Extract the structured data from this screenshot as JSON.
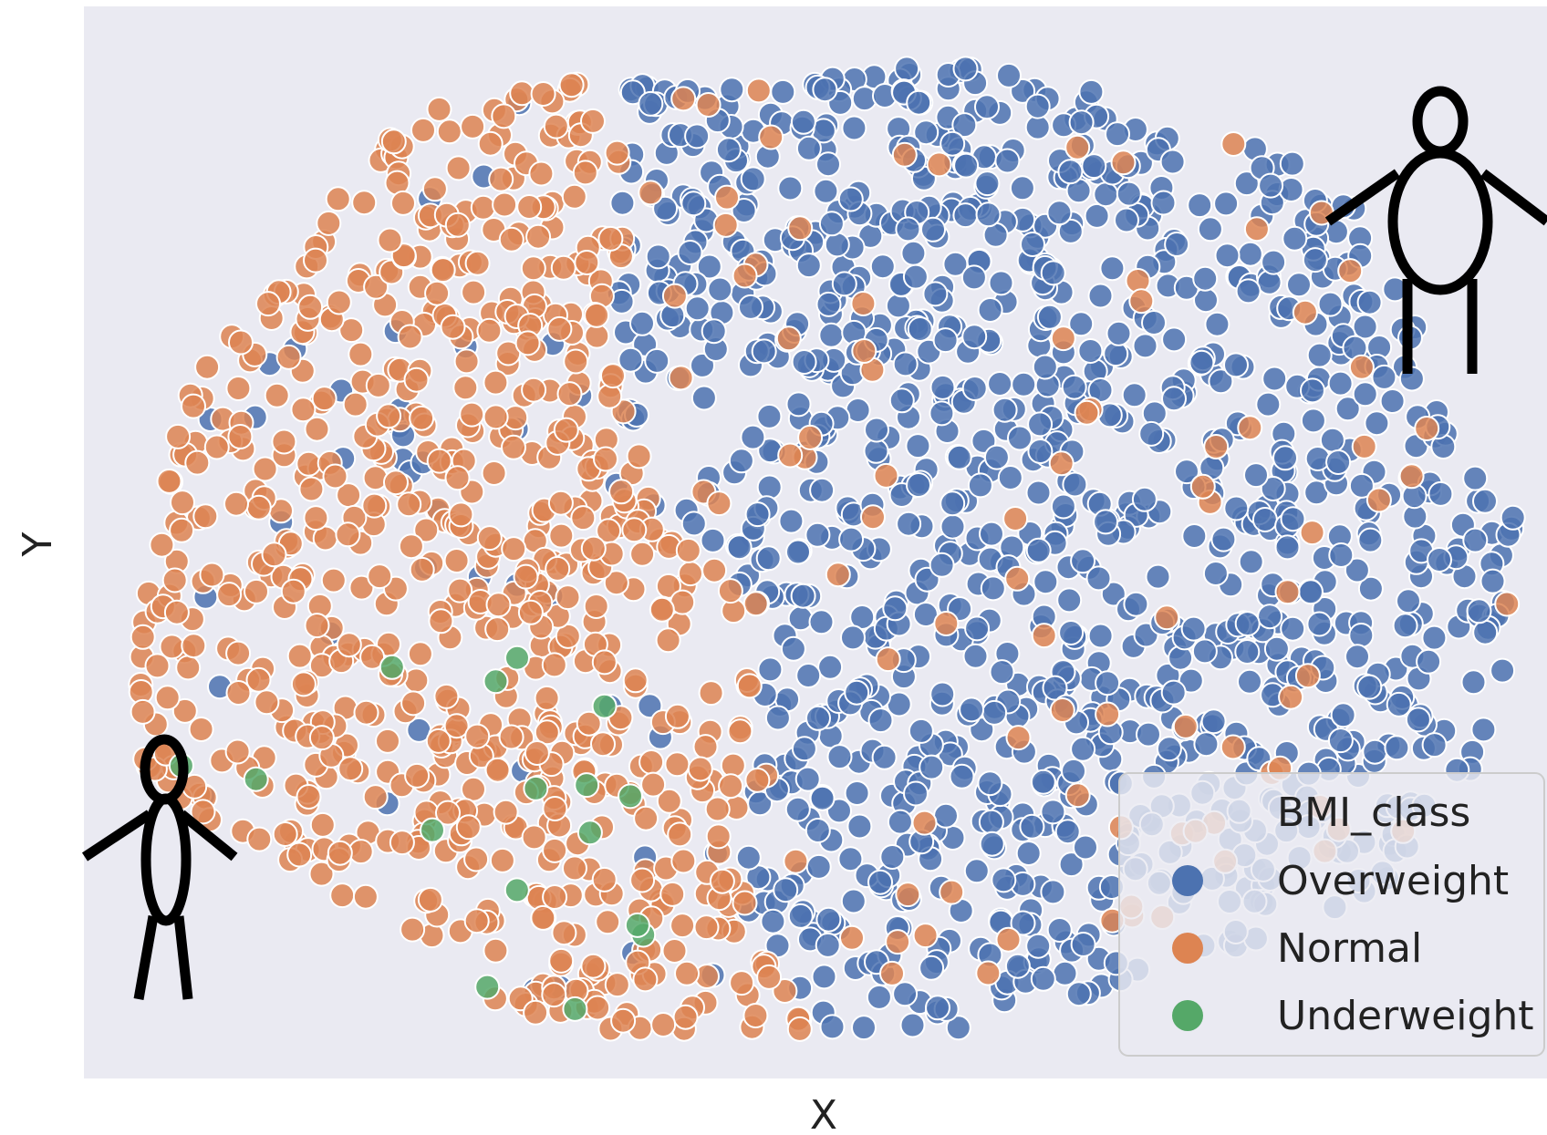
{
  "chart_data": {
    "type": "scatter",
    "title": "",
    "xlabel": "X",
    "ylabel": "Y",
    "grid": false,
    "axis_ticks_shown": false,
    "background_color": "#EAEAF2",
    "legend": {
      "title": "BMI_class",
      "placement": "bottom-right",
      "entries": [
        "Overweight",
        "Normal",
        "Underweight"
      ]
    },
    "series": [
      {
        "name": "Overweight",
        "color": "#4C72B0",
        "cluster_description": "dominant in right and upper-center region",
        "approx_count": 1100
      },
      {
        "name": "Normal",
        "color": "#DD8452",
        "cluster_description": "dominant in left and lower-center region",
        "approx_count": 1000
      },
      {
        "name": "Underweight",
        "color": "#55A868",
        "cluster_description": "few points along lower-left edge",
        "approx_count": 12
      }
    ],
    "icons": [
      {
        "name": "thin-person-icon",
        "meaning": "Underweight / thin figure",
        "placement": "lower-left"
      },
      {
        "name": "large-person-icon",
        "meaning": "Overweight / large figure",
        "placement": "upper-right"
      }
    ]
  }
}
